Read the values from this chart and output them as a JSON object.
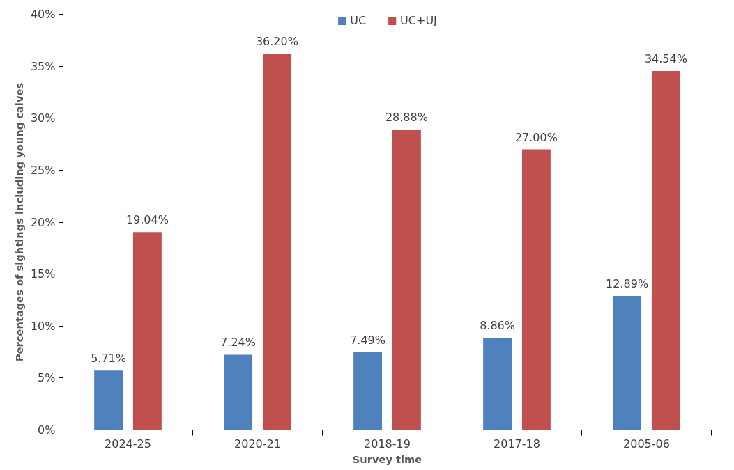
{
  "chart_data": {
    "type": "bar",
    "xlabel": "Survey time",
    "ylabel": "Percentages of sightings including young calves",
    "categories": [
      "2024-25",
      "2020-21",
      "2018-19",
      "2017-18",
      "2005-06"
    ],
    "series": [
      {
        "name": "UC",
        "color": "#4f81bd",
        "values": [
          5.71,
          7.24,
          7.49,
          8.86,
          12.89
        ],
        "value_labels": [
          "5.71%",
          "7.24%",
          "7.49%",
          "8.86%",
          "12.89%"
        ]
      },
      {
        "name": "UC+UJ",
        "color": "#c0504d",
        "values": [
          19.04,
          36.2,
          28.88,
          27.0,
          34.54
        ],
        "value_labels": [
          "19.04%",
          "36.20%",
          "28.88%",
          "27.00%",
          "34.54%"
        ]
      }
    ],
    "ylim": [
      0,
      40
    ],
    "yticks": [
      {
        "value": 0,
        "label": "0%"
      },
      {
        "value": 5,
        "label": "5%"
      },
      {
        "value": 10,
        "label": "10%"
      },
      {
        "value": 15,
        "label": "15%"
      },
      {
        "value": 20,
        "label": "20%"
      },
      {
        "value": 25,
        "label": "25%"
      },
      {
        "value": 30,
        "label": "30%"
      },
      {
        "value": 35,
        "label": "35%"
      },
      {
        "value": 40,
        "label": "40%"
      }
    ],
    "grid": false,
    "legend": "top"
  }
}
